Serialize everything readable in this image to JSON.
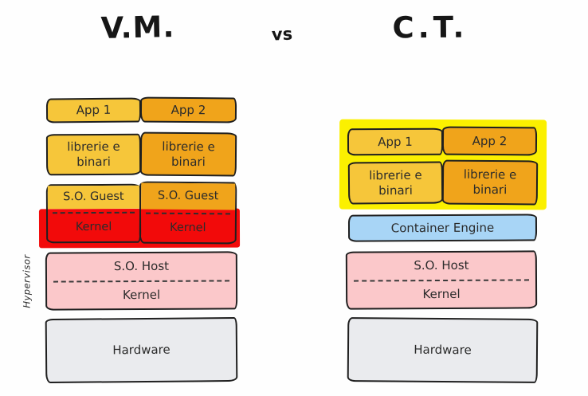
{
  "header": {
    "left_title": "V.M.",
    "versus": "vs",
    "right_title": "C.T."
  },
  "vm": {
    "app1": "App 1",
    "app2": "App 2",
    "lib1": "librerie e binari",
    "lib2": "librerie e binari",
    "guest1_os": "S.O. Guest",
    "guest1_kernel": "Kernel",
    "guest2_os": "S.O. Guest",
    "guest2_kernel": "Kernel",
    "host_os": "S.O. Host",
    "host_kernel": "Kernel",
    "hypervisor": "Hypervisor",
    "hardware": "Hardware"
  },
  "ct": {
    "app1": "App 1",
    "app2": "App 2",
    "lib1": "librerie e binari",
    "lib2": "librerie e binari",
    "container_engine": "Container Engine",
    "host_os": "S.O. Host",
    "host_kernel": "Kernel",
    "hardware": "Hardware"
  },
  "colors": {
    "gold": "#F6C63A",
    "orange": "#F0A41B",
    "red": "#F20A0A",
    "pink": "#FBC8CA",
    "blue": "#A8D5F6",
    "gray": "#EAEBEE",
    "yellow": "#FBF000",
    "ink": "#1F1F1F",
    "text": "#2B2B2B"
  }
}
